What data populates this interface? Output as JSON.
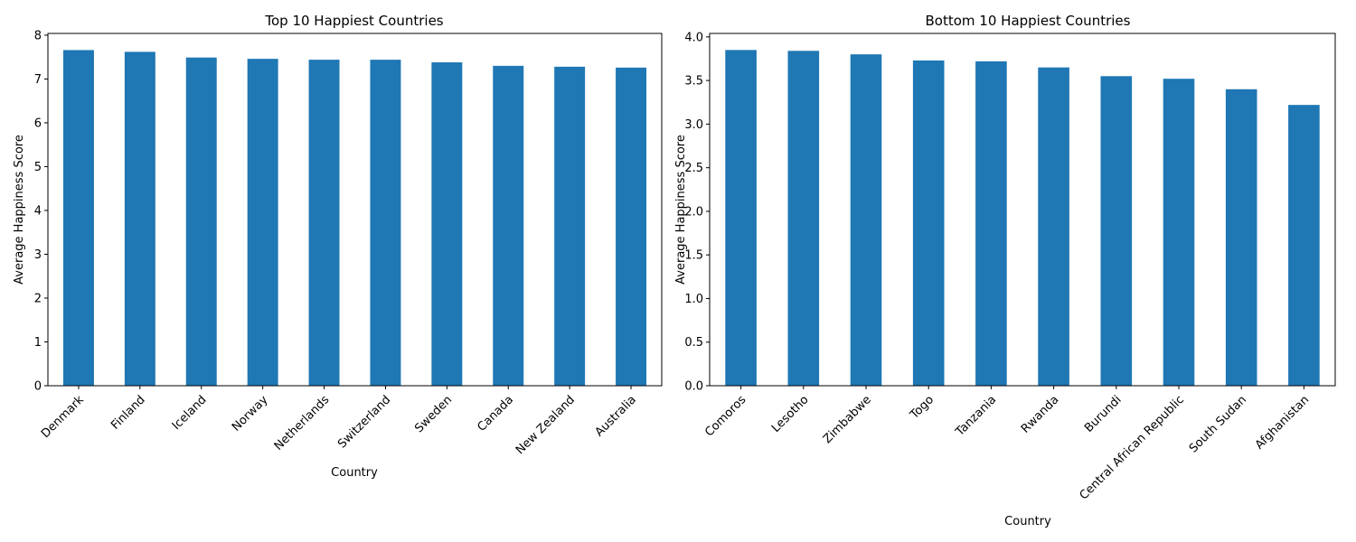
{
  "chart_data": [
    {
      "type": "bar",
      "title": "Top 10 Happiest Countries",
      "xlabel": "Country",
      "ylabel": "Average Happiness Score",
      "categories": [
        "Denmark",
        "Finland",
        "Iceland",
        "Norway",
        "Netherlands",
        "Switzerland",
        "Sweden",
        "Canada",
        "New Zealand",
        "Australia"
      ],
      "values": [
        7.66,
        7.62,
        7.49,
        7.46,
        7.44,
        7.44,
        7.38,
        7.3,
        7.28,
        7.26
      ],
      "ylim": [
        0,
        8.04
      ],
      "yticks": [
        0,
        1,
        2,
        3,
        4,
        5,
        6,
        7,
        8
      ],
      "ytick_labels": [
        "0",
        "1",
        "2",
        "3",
        "4",
        "5",
        "6",
        "7",
        "8"
      ],
      "color": "#1f77b4",
      "grid": false
    },
    {
      "type": "bar",
      "title": "Bottom 10 Happiest Countries",
      "xlabel": "Country",
      "ylabel": "Average Happiness Score",
      "categories": [
        "Comoros",
        "Lesotho",
        "Zimbabwe",
        "Togo",
        "Tanzania",
        "Rwanda",
        "Burundi",
        "Central African Republic",
        "South Sudan",
        "Afghanistan"
      ],
      "values": [
        3.85,
        3.84,
        3.8,
        3.73,
        3.72,
        3.65,
        3.55,
        3.52,
        3.4,
        3.22
      ],
      "ylim": [
        0,
        4.04
      ],
      "yticks": [
        0,
        0.5,
        1,
        1.5,
        2,
        2.5,
        3,
        3.5,
        4
      ],
      "ytick_labels": [
        "0.0",
        "0.5",
        "1.0",
        "1.5",
        "2.0",
        "2.5",
        "3.0",
        "3.5",
        "4.0"
      ],
      "color": "#1f77b4",
      "grid": false
    }
  ]
}
